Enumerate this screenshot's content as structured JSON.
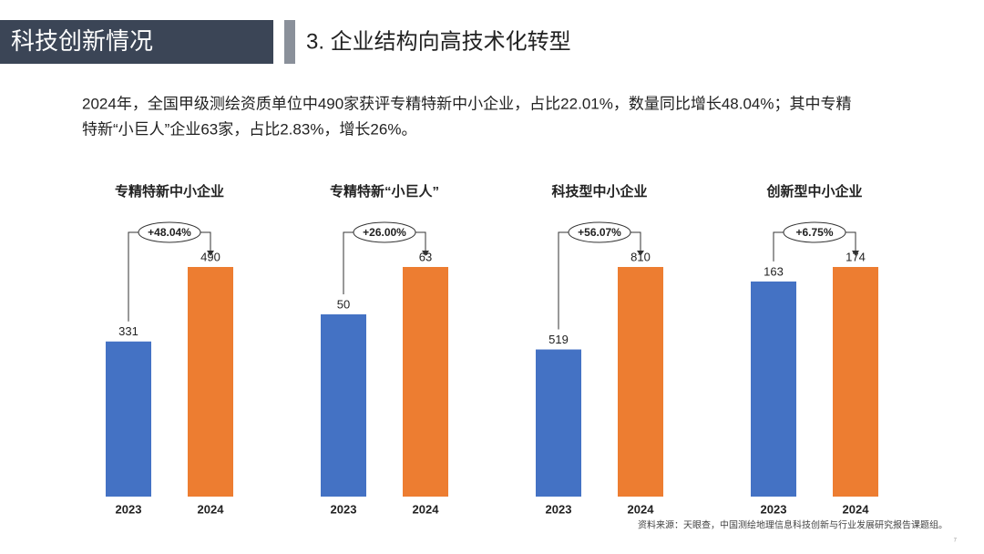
{
  "header": {
    "section": "科技创新情况",
    "title": "3. 企业结构向高技术化转型"
  },
  "summary": [
    "2024年，全国甲级测绘资质单位中490家获评专精特新中小企业，占比22.01%，数量同比增长48.04%；其中专精",
    "特新“小巨人”企业63家，占比2.83%，增长26%。"
  ],
  "chart_data": [
    {
      "type": "bar",
      "title": "专精特新中小企业",
      "categories": [
        "2023",
        "2024"
      ],
      "values": [
        331,
        490
      ],
      "colors": [
        "#4472c4",
        "#ed7d31"
      ],
      "ylim": [
        0,
        490
      ],
      "annotation": "+48.04%"
    },
    {
      "type": "bar",
      "title": "专精特新“小巨人”",
      "categories": [
        "2023",
        "2024"
      ],
      "values": [
        50,
        63
      ],
      "colors": [
        "#4472c4",
        "#ed7d31"
      ],
      "ylim": [
        0,
        63
      ],
      "annotation": "+26.00%"
    },
    {
      "type": "bar",
      "title": "科技型中小企业",
      "categories": [
        "2023",
        "2024"
      ],
      "values": [
        519,
        810
      ],
      "colors": [
        "#4472c4",
        "#ed7d31"
      ],
      "ylim": [
        0,
        810
      ],
      "annotation": "+56.07%"
    },
    {
      "type": "bar",
      "title": "创新型中小企业",
      "categories": [
        "2023",
        "2024"
      ],
      "values": [
        163,
        174
      ],
      "colors": [
        "#4472c4",
        "#ed7d31"
      ],
      "ylim": [
        0,
        174
      ],
      "annotation": "+6.75%"
    }
  ],
  "source": "资料来源：天眼查，中国测绘地理信息科技创新与行业发展研究报告课题组。",
  "page_number": "7"
}
